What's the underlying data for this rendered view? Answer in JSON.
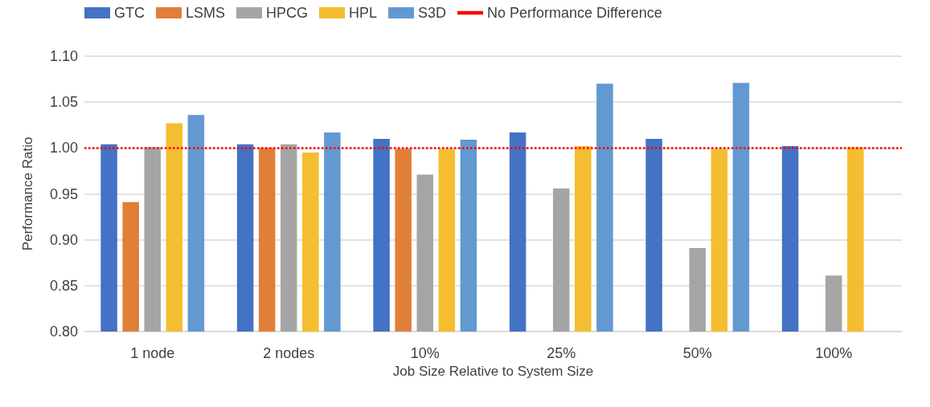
{
  "chart_data": {
    "type": "bar",
    "xlabel": "Job Size Relative to System Size",
    "ylabel": "Performance Ratio",
    "categories": [
      "1 node",
      "2 nodes",
      "10%",
      "25%",
      "50%",
      "100%"
    ],
    "series": [
      {
        "name": "GTC",
        "color": "#4472c4",
        "values": [
          1.004,
          1.004,
          1.01,
          1.017,
          1.01,
          1.002
        ]
      },
      {
        "name": "LSMS",
        "color": "#e07f38",
        "values": [
          0.941,
          1.0,
          0.999,
          null,
          null,
          null
        ]
      },
      {
        "name": "HPCG",
        "color": "#a5a5a5",
        "values": [
          1.001,
          1.004,
          0.971,
          0.956,
          0.891,
          0.861
        ]
      },
      {
        "name": "HPL",
        "color": "#f5bd30",
        "values": [
          1.027,
          0.995,
          0.999,
          1.002,
          0.999,
          1.001
        ]
      },
      {
        "name": "S3D",
        "color": "#6299d1",
        "values": [
          1.036,
          1.017,
          1.009,
          1.07,
          1.071,
          null
        ]
      }
    ],
    "ylim": [
      0.8,
      1.1
    ],
    "yticks": [
      {
        "value": 0.8,
        "label": "0.80"
      },
      0.85,
      {
        "value": 0.9,
        "label": "0.90"
      },
      0.95,
      {
        "value": 1.0,
        "label": "1.00"
      },
      1.05,
      {
        "value": 1.1,
        "label": "1.10"
      }
    ],
    "ref_lines": [
      {
        "axis": "y",
        "value": 1.0,
        "label": "No Performance Difference",
        "color": "#ff0000",
        "line_style": "dotted"
      }
    ],
    "grid": "y",
    "legend": "top left"
  }
}
